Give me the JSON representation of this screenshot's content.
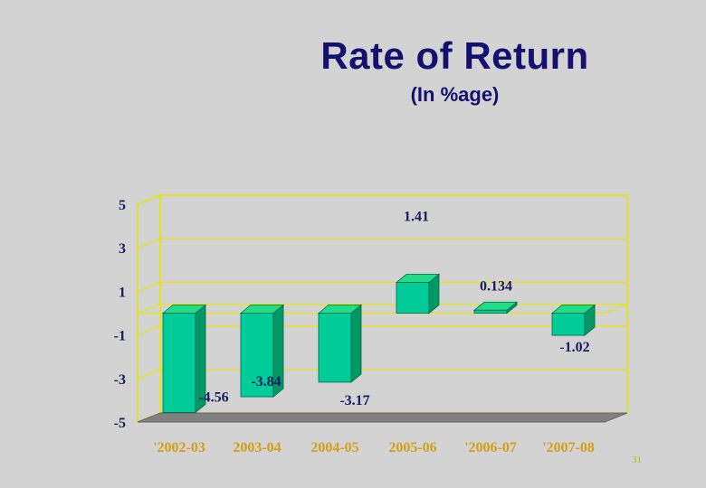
{
  "slide": {
    "title": "Rate of Return",
    "subtitle": "(In %age)",
    "page_number": "31"
  },
  "colors": {
    "bar_front": "#00cc99",
    "bar_top": "#22dd88",
    "bar_side": "#009966",
    "grid": "#e8e800",
    "floor": "#808080",
    "text": "#1a1a5e",
    "category_text": "#d4a017"
  },
  "chart_data": {
    "type": "bar",
    "title": "Rate of Return",
    "subtitle": "(In %age)",
    "xlabel": "",
    "ylabel": "",
    "categories": [
      "'2002-03",
      "2003-04",
      "2004-05",
      "2005-06",
      "'2006-07",
      "'2007-08"
    ],
    "values": [
      -4.56,
      -3.84,
      -3.17,
      1.41,
      0.134,
      -1.02
    ],
    "data_labels": [
      "-4.56",
      "-3.84",
      "-3.17",
      "1.41",
      "0.134",
      "-1.02"
    ],
    "y_ticks": [
      "5",
      "3",
      "1",
      "-1",
      "-3",
      "-5"
    ],
    "ylim": [
      -5,
      5
    ],
    "grid": true,
    "style": "3d"
  }
}
